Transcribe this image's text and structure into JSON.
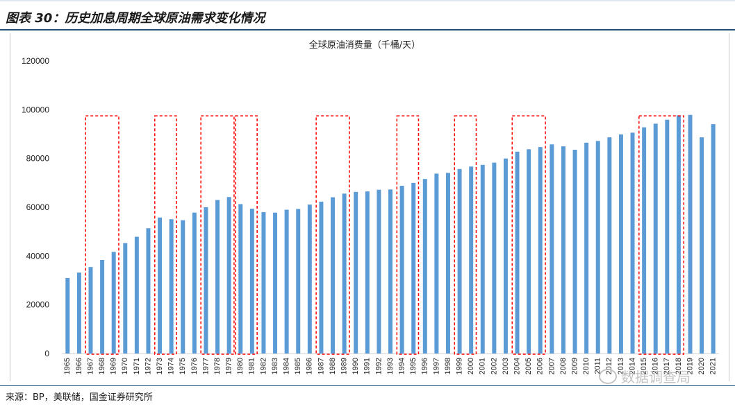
{
  "header": {
    "title": "图表 30：历史加息周期全球原油需求变化情况"
  },
  "footer": {
    "source": "来源：BP，美联储，国金证券研究所"
  },
  "watermark": {
    "text": "数据调查局"
  },
  "colors": {
    "bar": "#5b9bd5",
    "highlight_box": "#ff0000",
    "header_rule": "#1f4e79"
  },
  "chart_data": {
    "type": "bar",
    "title": "全球原油消费量（千桶/天）",
    "xlabel": "",
    "ylabel": "",
    "ylim": [
      0,
      120000
    ],
    "yticks": [
      0,
      20000,
      40000,
      60000,
      80000,
      100000,
      120000
    ],
    "grid": false,
    "legend": "none",
    "categories": [
      "1965",
      "1966",
      "1967",
      "1968",
      "1969",
      "1970",
      "1971",
      "1972",
      "1973",
      "1974",
      "1975",
      "1976",
      "1977",
      "1978",
      "1979",
      "1980",
      "1981",
      "1982",
      "1983",
      "1984",
      "1985",
      "1986",
      "1987",
      "1988",
      "1989",
      "1990",
      "1991",
      "1992",
      "1993",
      "1994",
      "1995",
      "1996",
      "1997",
      "1998",
      "1999",
      "2000",
      "2001",
      "2002",
      "2003",
      "2004",
      "2005",
      "2006",
      "2007",
      "2008",
      "2009",
      "2010",
      "2011",
      "2012",
      "2013",
      "2014",
      "2015",
      "2016",
      "2017",
      "2018",
      "2019",
      "2020",
      "2021"
    ],
    "values": [
      31000,
      33200,
      35500,
      38400,
      41700,
      45300,
      47900,
      51400,
      55800,
      55100,
      54700,
      57800,
      60000,
      63000,
      64200,
      61300,
      59400,
      58000,
      57800,
      59000,
      59300,
      61100,
      62300,
      64100,
      65600,
      66300,
      66500,
      67200,
      67300,
      68800,
      70000,
      71600,
      73800,
      74100,
      75700,
      76700,
      77400,
      78300,
      80000,
      82800,
      83800,
      84700,
      85800,
      85000,
      83600,
      86500,
      87200,
      88700,
      89900,
      90600,
      92800,
      94300,
      95900,
      97700,
      97900,
      88700,
      94100
    ],
    "highlight_periods": [
      [
        "1967",
        "1969"
      ],
      [
        "1973",
        "1974"
      ],
      [
        "1977",
        "1979"
      ],
      [
        "1980",
        "1981"
      ],
      [
        "1987",
        "1989"
      ],
      [
        "1994",
        "1995"
      ],
      [
        "1999",
        "2000"
      ],
      [
        "2004",
        "2006"
      ],
      [
        "2015",
        "2018"
      ]
    ]
  }
}
